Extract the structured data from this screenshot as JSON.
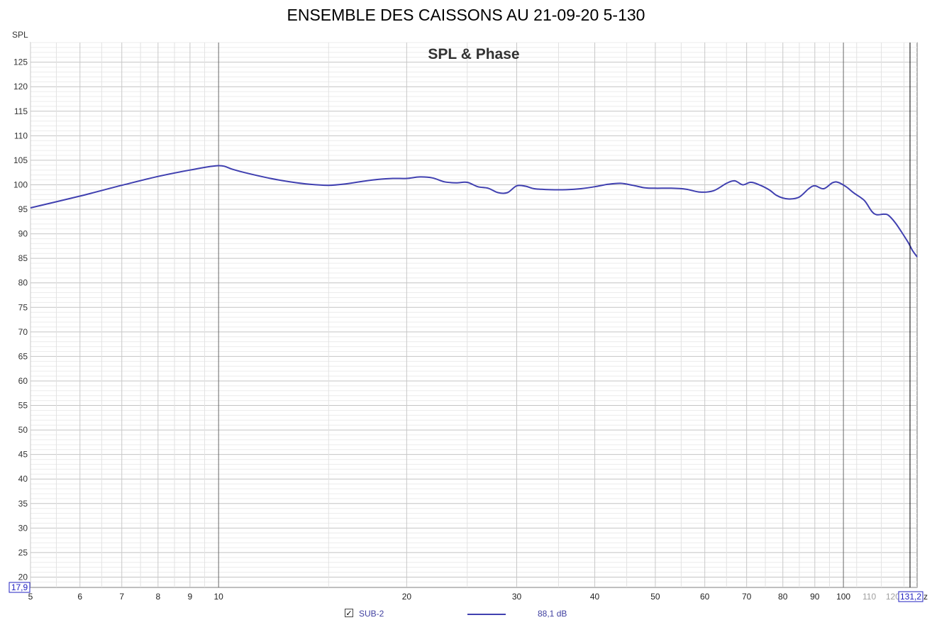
{
  "title": "ENSEMBLE DES CAISSONS AU 21-09-20 5-130",
  "chart_data": {
    "type": "line",
    "subtitle": "SPL & Phase",
    "ylabel": "SPL",
    "x_scale": "log",
    "xlim": [
      5,
      131.2
    ],
    "ylim": [
      17.9,
      129
    ],
    "x_unit_label": "z",
    "cursor_x_value": "131,2",
    "cursor_y_value": "17,9",
    "x_ticks": [
      {
        "v": 5,
        "label": "5",
        "grey": false
      },
      {
        "v": 6,
        "label": "6",
        "grey": false
      },
      {
        "v": 7,
        "label": "7",
        "grey": false
      },
      {
        "v": 8,
        "label": "8",
        "grey": false
      },
      {
        "v": 9,
        "label": "9",
        "grey": false
      },
      {
        "v": 10,
        "label": "10",
        "grey": false
      },
      {
        "v": 20,
        "label": "20",
        "grey": false
      },
      {
        "v": 30,
        "label": "30",
        "grey": false
      },
      {
        "v": 40,
        "label": "40",
        "grey": false
      },
      {
        "v": 50,
        "label": "50",
        "grey": false
      },
      {
        "v": 60,
        "label": "60",
        "grey": false
      },
      {
        "v": 70,
        "label": "70",
        "grey": false
      },
      {
        "v": 80,
        "label": "80",
        "grey": false
      },
      {
        "v": 90,
        "label": "90",
        "grey": false
      },
      {
        "v": 100,
        "label": "100",
        "grey": false
      },
      {
        "v": 110,
        "label": "110",
        "grey": true
      },
      {
        "v": 120,
        "label": "120",
        "grey": true
      }
    ],
    "y_ticks": [
      20,
      25,
      30,
      35,
      40,
      45,
      50,
      55,
      60,
      65,
      70,
      75,
      80,
      85,
      90,
      95,
      100,
      105,
      110,
      115,
      120,
      125
    ],
    "grid": true,
    "series": [
      {
        "name": "SUB-2",
        "color": "#4040b0",
        "legend_value": "88,1 dB",
        "points": [
          [
            5,
            95.3
          ],
          [
            6,
            97.7
          ],
          [
            7,
            99.9
          ],
          [
            8,
            101.7
          ],
          [
            9,
            103.0
          ],
          [
            10,
            103.9
          ],
          [
            10.5,
            103.2
          ],
          [
            11,
            102.5
          ],
          [
            12,
            101.4
          ],
          [
            13,
            100.6
          ],
          [
            14,
            100.1
          ],
          [
            15,
            99.9
          ],
          [
            16,
            100.2
          ],
          [
            17,
            100.7
          ],
          [
            18,
            101.1
          ],
          [
            19,
            101.3
          ],
          [
            20,
            101.3
          ],
          [
            21,
            101.6
          ],
          [
            22,
            101.4
          ],
          [
            23,
            100.6
          ],
          [
            24,
            100.4
          ],
          [
            25,
            100.5
          ],
          [
            26,
            99.6
          ],
          [
            27,
            99.3
          ],
          [
            28,
            98.4
          ],
          [
            29,
            98.4
          ],
          [
            30,
            99.8
          ],
          [
            31,
            99.7
          ],
          [
            32,
            99.2
          ],
          [
            34,
            99.0
          ],
          [
            36,
            99.0
          ],
          [
            38,
            99.2
          ],
          [
            40,
            99.6
          ],
          [
            42,
            100.1
          ],
          [
            44,
            100.3
          ],
          [
            46,
            99.9
          ],
          [
            48,
            99.4
          ],
          [
            50,
            99.3
          ],
          [
            53,
            99.3
          ],
          [
            56,
            99.1
          ],
          [
            59,
            98.5
          ],
          [
            62,
            98.8
          ],
          [
            65,
            100.3
          ],
          [
            67,
            100.8
          ],
          [
            69,
            100.0
          ],
          [
            71,
            100.5
          ],
          [
            73,
            100.1
          ],
          [
            76,
            99.0
          ],
          [
            78,
            97.9
          ],
          [
            80,
            97.3
          ],
          [
            82,
            97.1
          ],
          [
            85,
            97.5
          ],
          [
            88,
            99.2
          ],
          [
            90,
            99.8
          ],
          [
            93,
            99.2
          ],
          [
            96,
            100.4
          ],
          [
            98,
            100.5
          ],
          [
            101,
            99.6
          ],
          [
            104,
            98.3
          ],
          [
            108,
            96.8
          ],
          [
            111,
            94.6
          ],
          [
            113,
            93.9
          ],
          [
            116,
            94.0
          ],
          [
            118,
            93.8
          ],
          [
            121,
            92.3
          ],
          [
            124,
            90.3
          ],
          [
            127,
            88.2
          ],
          [
            129,
            86.6
          ],
          [
            131.2,
            85.3
          ]
        ]
      }
    ]
  },
  "legend": {
    "checkbox_mark": "✓",
    "series_name": "SUB-2",
    "value": "88,1 dB"
  }
}
